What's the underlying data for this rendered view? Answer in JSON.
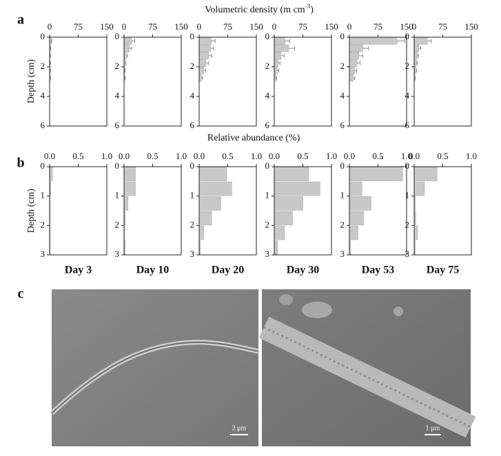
{
  "panels": [
    "a",
    "b",
    "c"
  ],
  "axes_a": {
    "x_label": {
      "text": "Volumetric density (m cm",
      "superscript": "-3",
      "suffix": ")"
    },
    "y_label": "Depth (cm)"
  },
  "axes_b": {
    "x_label": "Relative abundance (%)",
    "y_label": "Depth (cm)"
  },
  "days": [
    "Day 3",
    "Day 10",
    "Day 20",
    "Day 30",
    "Day 53",
    "Day 75"
  ],
  "chart_data": [
    {
      "type": "bar",
      "orientation": "horizontal",
      "color": "#c8c8c8",
      "xlim": [
        0,
        150
      ],
      "xticks": [
        0,
        75,
        150
      ],
      "ylim": [
        0,
        6
      ],
      "yticks": [
        0,
        2,
        4,
        6
      ],
      "y": [
        0.25,
        0.75,
        1.25,
        1.75,
        2.25,
        2.75
      ],
      "values": [
        4,
        2,
        1,
        1,
        1,
        1
      ],
      "errors": [
        2,
        1,
        1,
        1,
        1,
        1
      ]
    },
    {
      "type": "bar",
      "orientation": "horizontal",
      "color": "#c8c8c8",
      "xlim": [
        0,
        150
      ],
      "xticks": [
        0,
        75,
        150
      ],
      "ylim": [
        0,
        6
      ],
      "yticks": [
        0,
        2,
        4,
        6
      ],
      "y": [
        0.25,
        0.75,
        1.25,
        1.75,
        2.25,
        2.75
      ],
      "values": [
        20,
        14,
        6,
        3,
        2,
        2
      ],
      "errors": [
        8,
        5,
        3,
        2,
        1,
        1
      ]
    },
    {
      "type": "bar",
      "orientation": "horizontal",
      "color": "#c8c8c8",
      "xlim": [
        0,
        150
      ],
      "xticks": [
        0,
        75,
        150
      ],
      "ylim": [
        0,
        6
      ],
      "yticks": [
        0,
        2,
        4,
        6
      ],
      "y": [
        0.25,
        0.75,
        1.25,
        1.75,
        2.25,
        2.75
      ],
      "values": [
        32,
        30,
        25,
        18,
        12,
        6
      ],
      "errors": [
        10,
        8,
        8,
        6,
        5,
        3
      ]
    },
    {
      "type": "bar",
      "orientation": "horizontal",
      "color": "#c8c8c8",
      "xlim": [
        0,
        150
      ],
      "xticks": [
        0,
        75,
        150
      ],
      "ylim": [
        0,
        6
      ],
      "yticks": [
        0,
        2,
        4,
        6
      ],
      "y": [
        0.25,
        0.75,
        1.25,
        1.75,
        2.25,
        2.75
      ],
      "values": [
        28,
        38,
        18,
        10,
        8,
        4
      ],
      "errors": [
        12,
        15,
        8,
        5,
        4,
        2
      ]
    },
    {
      "type": "bar",
      "orientation": "horizontal",
      "color": "#c8c8c8",
      "xlim": [
        0,
        150
      ],
      "xticks": [
        0,
        75,
        150
      ],
      "ylim": [
        0,
        6
      ],
      "yticks": [
        0,
        2,
        4,
        6
      ],
      "y": [
        0.25,
        0.75,
        1.25,
        1.75,
        2.25,
        2.75
      ],
      "values": [
        125,
        35,
        25,
        20,
        14,
        10
      ],
      "errors": [
        20,
        15,
        10,
        8,
        5,
        4
      ]
    },
    {
      "type": "bar",
      "orientation": "horizontal",
      "color": "#c8c8c8",
      "xlim": [
        0,
        150
      ],
      "xticks": [
        0,
        75,
        150
      ],
      "ylim": [
        0,
        6
      ],
      "yticks": [
        0,
        2,
        4,
        6
      ],
      "y": [
        0.25,
        0.75,
        1.25,
        1.75,
        2.25,
        2.75
      ],
      "values": [
        35,
        12,
        8,
        6,
        4,
        2
      ],
      "errors": [
        10,
        5,
        3,
        2,
        2,
        1
      ]
    },
    {
      "type": "bar",
      "orientation": "horizontal",
      "color": "#c8c8c8",
      "xlim": [
        0,
        1
      ],
      "xticks": [
        {
          "value": 0,
          "label": "0.0"
        },
        0.5,
        {
          "value": 1,
          "label": "1.0"
        }
      ],
      "ylim": [
        0,
        3
      ],
      "yticks": [
        0,
        1,
        2,
        3
      ],
      "y": [
        0.25,
        0.75,
        1.25,
        1.75,
        2.25,
        2.75
      ],
      "values": [
        0.05,
        0.02,
        0.01,
        0.01,
        0.01,
        0.01
      ]
    },
    {
      "type": "bar",
      "orientation": "horizontal",
      "color": "#c8c8c8",
      "xlim": [
        0,
        1
      ],
      "xticks": [
        {
          "value": 0,
          "label": "0.0"
        },
        0.5,
        {
          "value": 1,
          "label": "1.0"
        }
      ],
      "ylim": [
        0,
        3
      ],
      "yticks": [
        0,
        1,
        2,
        3
      ],
      "y": [
        0.25,
        0.75,
        1.25,
        1.75,
        2.25,
        2.75
      ],
      "values": [
        0.2,
        0.2,
        0.07,
        0.02,
        0.01,
        0.02
      ]
    },
    {
      "type": "bar",
      "orientation": "horizontal",
      "color": "#c8c8c8",
      "xlim": [
        0,
        1
      ],
      "xticks": [
        {
          "value": 0,
          "label": "0.0"
        },
        0.5,
        {
          "value": 1,
          "label": "1.0"
        }
      ],
      "ylim": [
        0,
        3
      ],
      "yticks": [
        0,
        1,
        2,
        3
      ],
      "y": [
        0.25,
        0.75,
        1.25,
        1.75,
        2.25,
        2.75
      ],
      "values": [
        0.48,
        0.57,
        0.38,
        0.22,
        0.08,
        0.02
      ]
    },
    {
      "type": "bar",
      "orientation": "horizontal",
      "color": "#c8c8c8",
      "xlim": [
        0,
        1
      ],
      "xticks": [
        {
          "value": 0,
          "label": "0.0"
        },
        0.5,
        {
          "value": 1,
          "label": "1.0"
        }
      ],
      "ylim": [
        0,
        3
      ],
      "yticks": [
        0,
        1,
        2,
        3
      ],
      "y": [
        0.25,
        0.75,
        1.25,
        1.75,
        2.25,
        2.75
      ],
      "values": [
        0.6,
        0.8,
        0.5,
        0.32,
        0.18,
        0.06
      ]
    },
    {
      "type": "bar",
      "orientation": "horizontal",
      "color": "#c8c8c8",
      "xlim": [
        0,
        1
      ],
      "xticks": [
        {
          "value": 0,
          "label": "0.0"
        },
        0.5,
        {
          "value": 1,
          "label": "1.0"
        }
      ],
      "ylim": [
        0,
        3
      ],
      "yticks": [
        0,
        1,
        2,
        3
      ],
      "y": [
        0.25,
        0.75,
        1.25,
        1.75,
        2.25,
        2.75
      ],
      "values": [
        0.93,
        0.22,
        0.38,
        0.25,
        0.15,
        0.02
      ]
    },
    {
      "type": "bar",
      "orientation": "horizontal",
      "color": "#c8c8c8",
      "xlim": [
        0,
        1
      ],
      "xticks": [
        {
          "value": 0,
          "label": "0.0"
        },
        0.5,
        {
          "value": 1,
          "label": "1.0"
        }
      ],
      "ylim": [
        0,
        3
      ],
      "yticks": [
        0,
        1,
        2,
        3
      ],
      "y": [
        0.25,
        0.75,
        1.25,
        1.75,
        2.25,
        2.75
      ],
      "values": [
        0.4,
        0.18,
        0.02,
        0.03,
        0.06,
        0.02
      ]
    }
  ],
  "images": [
    {
      "scale_bar": "2 μm"
    },
    {
      "scale_bar": "1 μm"
    }
  ]
}
